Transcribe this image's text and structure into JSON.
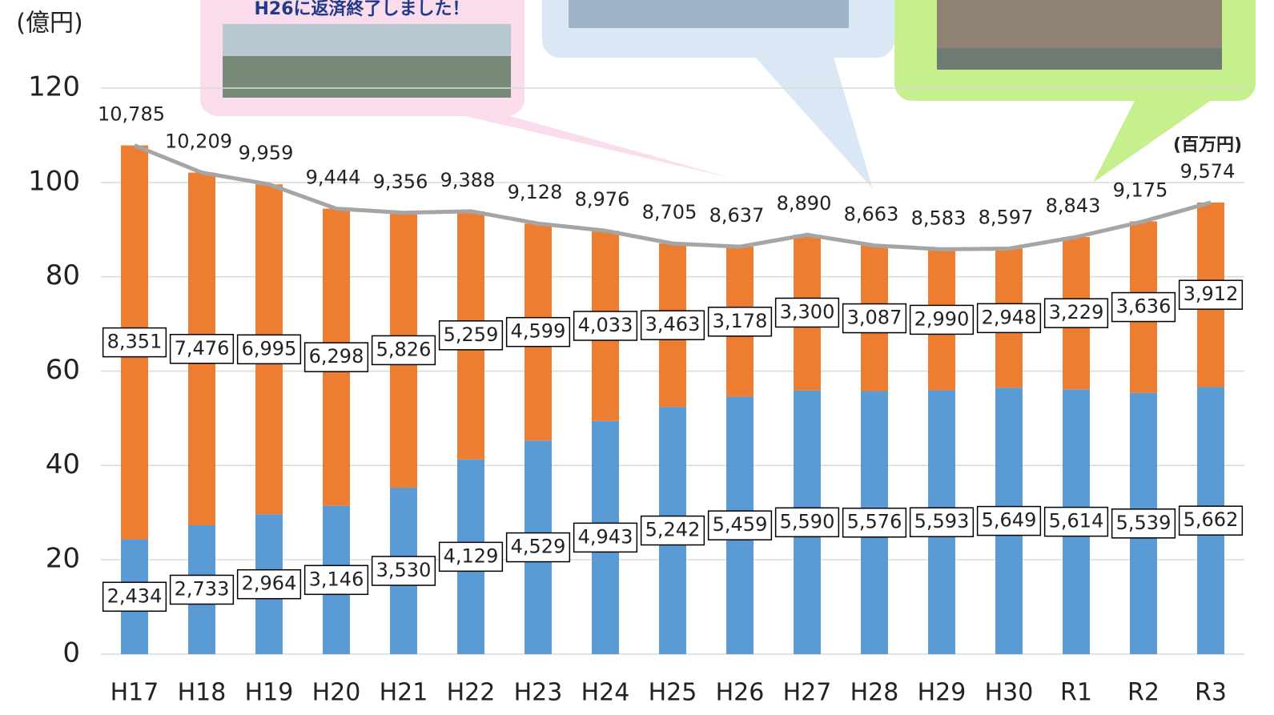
{
  "chart_data": {
    "type": "bar",
    "stacked": true,
    "y_label": "(億円)",
    "unit_note": "(百万円)",
    "callout": "H26に返済終了しました！",
    "categories": [
      "H17",
      "H18",
      "H19",
      "H20",
      "H21",
      "H22",
      "H23",
      "H24",
      "H25",
      "H26",
      "H27",
      "H28",
      "H29",
      "H30",
      "R1",
      "R2",
      "R3"
    ],
    "series": [
      {
        "type": "bar",
        "color": "#5b9bd5",
        "values": [
          24.34,
          27.33,
          29.64,
          31.46,
          35.3,
          41.29,
          45.29,
          49.43,
          52.42,
          54.59,
          55.9,
          55.76,
          55.93,
          56.49,
          56.14,
          55.39,
          56.62
        ],
        "value_labels": [
          "2,434",
          "2,733",
          "2,964",
          "3,146",
          "3,530",
          "4,129",
          "4,529",
          "4,943",
          "5,242",
          "5,459",
          "5,590",
          "5,576",
          "5,593",
          "5,649",
          "5,614",
          "5,539",
          "5,662"
        ]
      },
      {
        "type": "bar",
        "color": "#ed7d31",
        "values": [
          83.51,
          74.76,
          69.95,
          62.98,
          58.26,
          52.59,
          45.99,
          40.33,
          34.63,
          31.78,
          33.0,
          30.87,
          29.9,
          29.48,
          32.29,
          36.36,
          39.12
        ],
        "value_labels": [
          "8,351",
          "7,476",
          "6,995",
          "6,298",
          "5,826",
          "5,259",
          "4,599",
          "4,033",
          "3,463",
          "3,178",
          "3,300",
          "3,087",
          "2,990",
          "2,948",
          "3,229",
          "3,636",
          "3,912"
        ]
      },
      {
        "type": "line",
        "color": "#a5a5a5",
        "values": [
          107.85,
          102.09,
          99.59,
          94.44,
          93.56,
          93.88,
          91.28,
          89.76,
          87.05,
          86.37,
          88.9,
          86.63,
          85.83,
          85.97,
          88.43,
          91.75,
          95.74
        ],
        "value_labels": [
          "10,785",
          "10,209",
          "9,959",
          "9,444",
          "9,356",
          "9,388",
          "9,128",
          "8,976",
          "8,705",
          "8,637",
          "8,890",
          "8,663",
          "8,583",
          "8,597",
          "8,843",
          "9,175",
          "9,574"
        ]
      }
    ],
    "ylim": [
      0,
      120
    ],
    "yticks": [
      0,
      20,
      40,
      60,
      80,
      100,
      120
    ],
    "grid": true
  }
}
